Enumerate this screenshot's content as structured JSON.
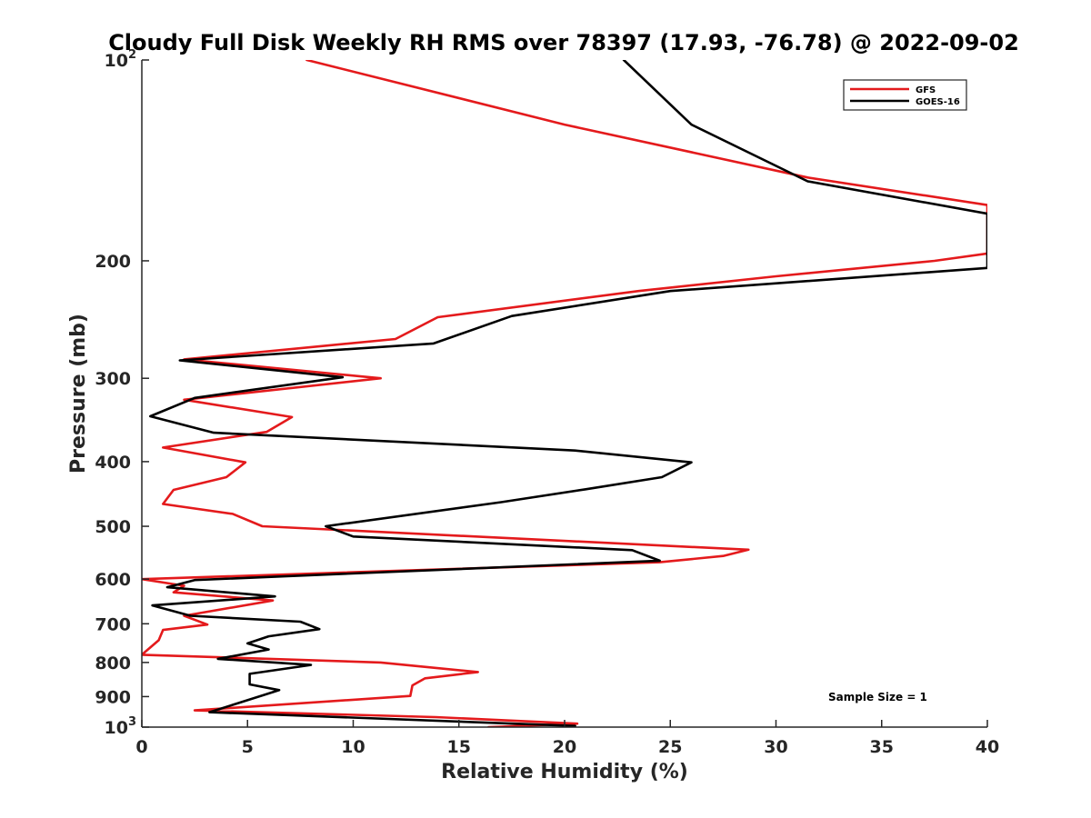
{
  "chart_data": {
    "type": "line",
    "title": "Cloudy Full Disk Weekly RH RMS over 78397 (17.93, -76.78) @ 2022-09-02",
    "xlabel": "Relative Humidity (%)",
    "ylabel": "Pressure (mb)",
    "xlim": [
      0,
      40
    ],
    "ylim": [
      100,
      1000
    ],
    "y_scale": "log",
    "y_reversed": true,
    "x_ticks": [
      "0",
      "5",
      "10",
      "15",
      "20",
      "25",
      "30",
      "35",
      "40"
    ],
    "y_ticks": [
      {
        "value": 100,
        "base": "10",
        "exp": "2"
      },
      {
        "value": 200,
        "label": "200"
      },
      {
        "value": 300,
        "label": "300"
      },
      {
        "value": 400,
        "label": "400"
      },
      {
        "value": 500,
        "label": "500"
      },
      {
        "value": 600,
        "label": "600"
      },
      {
        "value": 700,
        "label": "700"
      },
      {
        "value": 800,
        "label": "800"
      },
      {
        "value": 900,
        "label": "900"
      },
      {
        "value": 1000,
        "base": "10",
        "exp": "3"
      }
    ],
    "legend_position": "top-right",
    "grid": false,
    "annotation": "Sample Size = 1",
    "series": [
      {
        "name": "GFS",
        "color": "#e41a1c",
        "points": [
          [
            7.8,
            100
          ],
          [
            20,
            125
          ],
          [
            31.5,
            150
          ],
          [
            40,
            165
          ],
          [
            40,
            195
          ],
          [
            37.5,
            200
          ],
          [
            30,
            211
          ],
          [
            23.5,
            222
          ],
          [
            14,
            243
          ],
          [
            12,
            262
          ],
          [
            2,
            281
          ],
          [
            11.3,
            300
          ],
          [
            2,
            323
          ],
          [
            7.1,
            343
          ],
          [
            5.9,
            361
          ],
          [
            1,
            381
          ],
          [
            4.9,
            401
          ],
          [
            4,
            422
          ],
          [
            1.5,
            441
          ],
          [
            1,
            463
          ],
          [
            4.3,
            479
          ],
          [
            5.7,
            500
          ],
          [
            28.7,
            542
          ],
          [
            27.5,
            554
          ],
          [
            24.5,
            566
          ],
          [
            0,
            600
          ],
          [
            2,
            614
          ],
          [
            1.5,
            628
          ],
          [
            6.2,
            646
          ],
          [
            2,
            681
          ],
          [
            3.1,
            702
          ],
          [
            1,
            715
          ],
          [
            0.8,
            741
          ],
          [
            0,
            779
          ],
          [
            11.3,
            800
          ],
          [
            15.9,
            827
          ],
          [
            13.4,
            845
          ],
          [
            12.8,
            866
          ],
          [
            12.7,
            898
          ],
          [
            2.5,
            944
          ],
          [
            13.9,
            966
          ],
          [
            20.6,
            988
          ],
          [
            16.4,
            1000
          ]
        ]
      },
      {
        "name": "GOES-16",
        "color": "#000000",
        "points": [
          [
            22.8,
            100
          ],
          [
            26,
            125
          ],
          [
            31.5,
            152
          ],
          [
            40,
            170
          ],
          [
            40,
            205
          ],
          [
            25,
            222
          ],
          [
            17.5,
            242
          ],
          [
            13.8,
            266
          ],
          [
            1.8,
            282
          ],
          [
            9.5,
            299
          ],
          [
            2.5,
            321
          ],
          [
            0.4,
            342
          ],
          [
            3.4,
            362
          ],
          [
            20.5,
            385
          ],
          [
            26,
            401
          ],
          [
            24.6,
            422
          ],
          [
            21,
            440
          ],
          [
            17,
            460
          ],
          [
            8.7,
            500
          ],
          [
            10,
            518
          ],
          [
            23.2,
            543
          ],
          [
            24.5,
            563
          ],
          [
            2.5,
            602
          ],
          [
            1.2,
            617
          ],
          [
            6.3,
            637
          ],
          [
            0.5,
            657
          ],
          [
            2.3,
            681
          ],
          [
            7.5,
            695
          ],
          [
            8.4,
            713
          ],
          [
            6,
            731
          ],
          [
            5,
            749
          ],
          [
            6,
            765
          ],
          [
            3.6,
            790
          ],
          [
            8,
            807
          ],
          [
            5.1,
            832
          ],
          [
            5.1,
            863
          ],
          [
            6.5,
            880
          ],
          [
            3.2,
            950
          ],
          [
            20.5,
            996
          ],
          [
            20,
            1000
          ]
        ]
      }
    ]
  }
}
